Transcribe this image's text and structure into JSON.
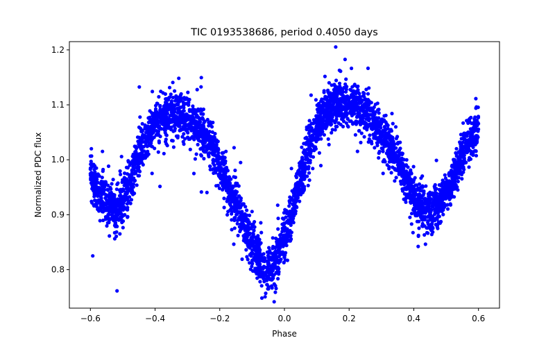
{
  "chart_data": {
    "type": "scatter",
    "title": "TIC 0193538686, period 0.4050 days",
    "xlabel": "Phase",
    "ylabel": "Normalized PDC flux",
    "xlim": [
      -0.665,
      0.665
    ],
    "ylim": [
      0.73,
      1.215
    ],
    "x_ticks": [
      -0.6,
      -0.4,
      -0.2,
      0.0,
      0.2,
      0.4,
      0.6
    ],
    "x_tick_labels": [
      "−0.6",
      "−0.4",
      "−0.2",
      "0.0",
      "0.2",
      "0.4",
      "0.6"
    ],
    "y_ticks": [
      0.8,
      0.9,
      1.0,
      1.1,
      1.2
    ],
    "y_tick_labels": [
      "0.8",
      "0.9",
      "1.0",
      "1.1",
      "1.2"
    ],
    "grid": false,
    "marker_color": "#0000ff",
    "phase_range": [
      -0.6,
      0.6
    ],
    "light_curve_x": [
      -0.6,
      -0.58,
      -0.55,
      -0.52,
      -0.5,
      -0.48,
      -0.45,
      -0.42,
      -0.4,
      -0.38,
      -0.35,
      -0.32,
      -0.3,
      -0.28,
      -0.25,
      -0.22,
      -0.2,
      -0.18,
      -0.15,
      -0.12,
      -0.1,
      -0.08,
      -0.06,
      -0.05,
      -0.04,
      -0.02,
      0.0,
      0.02,
      0.04,
      0.06,
      0.08,
      0.1,
      0.12,
      0.15,
      0.18,
      0.2,
      0.22,
      0.25,
      0.28,
      0.3,
      0.32,
      0.35,
      0.38,
      0.4,
      0.42,
      0.45,
      0.47,
      0.5,
      0.52,
      0.55,
      0.58,
      0.6
    ],
    "light_curve_y": [
      0.985,
      0.95,
      0.92,
      0.91,
      0.925,
      0.96,
      1.01,
      1.045,
      1.065,
      1.075,
      1.08,
      1.08,
      1.075,
      1.065,
      1.045,
      1.02,
      0.99,
      0.96,
      0.92,
      0.875,
      0.845,
      0.82,
      0.8,
      0.8,
      0.805,
      0.825,
      0.855,
      0.895,
      0.945,
      0.99,
      1.03,
      1.06,
      1.08,
      1.1,
      1.105,
      1.105,
      1.1,
      1.085,
      1.065,
      1.05,
      1.03,
      0.995,
      0.955,
      0.93,
      0.915,
      0.91,
      0.915,
      0.94,
      0.965,
      1.01,
      1.045,
      1.06
    ]
  }
}
